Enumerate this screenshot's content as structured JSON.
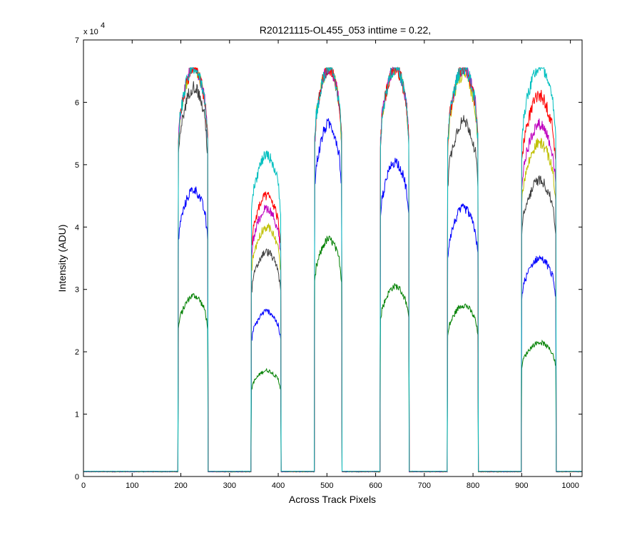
{
  "chart_data": {
    "type": "line",
    "title": "R20121115-OL455_053 inttime = 0.22,",
    "xlabel": "Across Track Pixels",
    "ylabel": "Intensity (ADU)",
    "xlim": [
      0,
      1024
    ],
    "ylim": [
      0,
      70000
    ],
    "y_multiplier": {
      "base": "x 10",
      "exponent": "4"
    },
    "xticks": [
      0,
      100,
      200,
      300,
      400,
      500,
      600,
      700,
      800,
      900,
      1000
    ],
    "xtick_labels": [
      "0",
      "100",
      "200",
      "300",
      "400",
      "500",
      "600",
      "700",
      "800",
      "900",
      "1000"
    ],
    "yticks": [
      0,
      10000,
      20000,
      30000,
      40000,
      50000,
      60000,
      70000
    ],
    "ytick_labels": [
      "0",
      "1",
      "2",
      "3",
      "4",
      "5",
      "6",
      "7"
    ],
    "grid": false,
    "legend": "none",
    "saturation_level": 65535,
    "background_level": 750,
    "bands": [
      {
        "start": 195,
        "end": 255
      },
      {
        "start": 345,
        "end": 405
      },
      {
        "start": 475,
        "end": 530
      },
      {
        "start": 610,
        "end": 668
      },
      {
        "start": 748,
        "end": 810
      },
      {
        "start": 900,
        "end": 970
      }
    ],
    "series": [
      {
        "color": "#008000",
        "band_peaks": [
          29000,
          17000,
          38000,
          30500,
          27500,
          21500
        ]
      },
      {
        "color": "#0000ff",
        "band_peaks": [
          46000,
          26500,
          56500,
          50500,
          43000,
          35000
        ]
      },
      {
        "color": "#404040",
        "band_peaks": [
          62500,
          36000,
          65535,
          65535,
          57000,
          47500
        ]
      },
      {
        "color": "#bfbf00",
        "band_peaks": [
          65535,
          40000,
          65535,
          65535,
          64500,
          53500
        ]
      },
      {
        "color": "#bf00bf",
        "band_peaks": [
          65535,
          43000,
          65535,
          65535,
          65535,
          56500
        ]
      },
      {
        "color": "#ff0000",
        "band_peaks": [
          65535,
          45000,
          65535,
          65535,
          65535,
          61000
        ]
      },
      {
        "color": "#00bfbf",
        "band_peaks": [
          65535,
          51500,
          65535,
          65535,
          65535,
          65535
        ]
      }
    ]
  }
}
